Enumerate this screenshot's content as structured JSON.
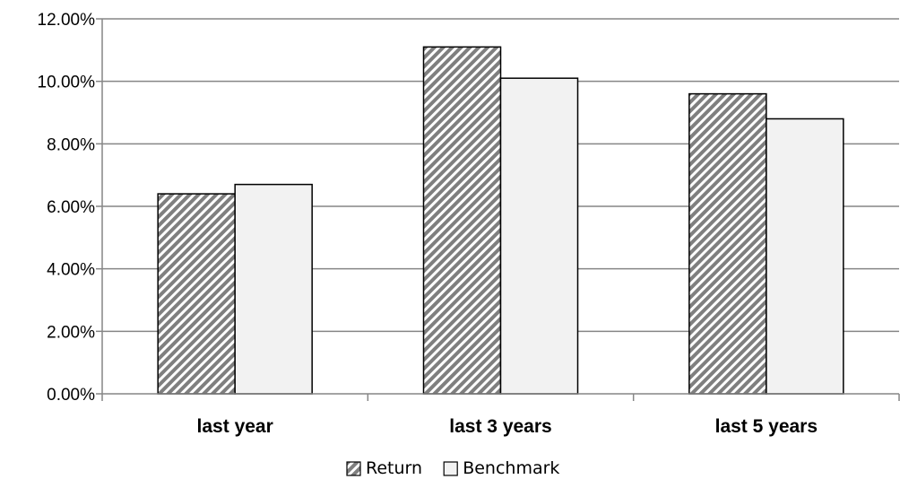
{
  "chart_data": {
    "type": "bar",
    "categories": [
      "last year",
      "last 3 years",
      "last 5 years"
    ],
    "series": [
      {
        "name": "Return",
        "values": [
          6.4,
          11.1,
          9.6
        ],
        "pattern": "diagonal-hatch",
        "color": "#7f7f7f"
      },
      {
        "name": "Benchmark",
        "values": [
          6.7,
          10.1,
          8.8
        ],
        "pattern": "solid",
        "color": "#f2f2f2"
      }
    ],
    "yticks": [
      "0.00%",
      "2.00%",
      "4.00%",
      "6.00%",
      "8.00%",
      "10.00%",
      "12.00%"
    ],
    "ylim": [
      0,
      12
    ],
    "ystep": 2,
    "grid": true,
    "legend_position": "bottom",
    "colors": {
      "gridline": "#868686",
      "bar_border": "#000000",
      "text": "#000000"
    }
  }
}
